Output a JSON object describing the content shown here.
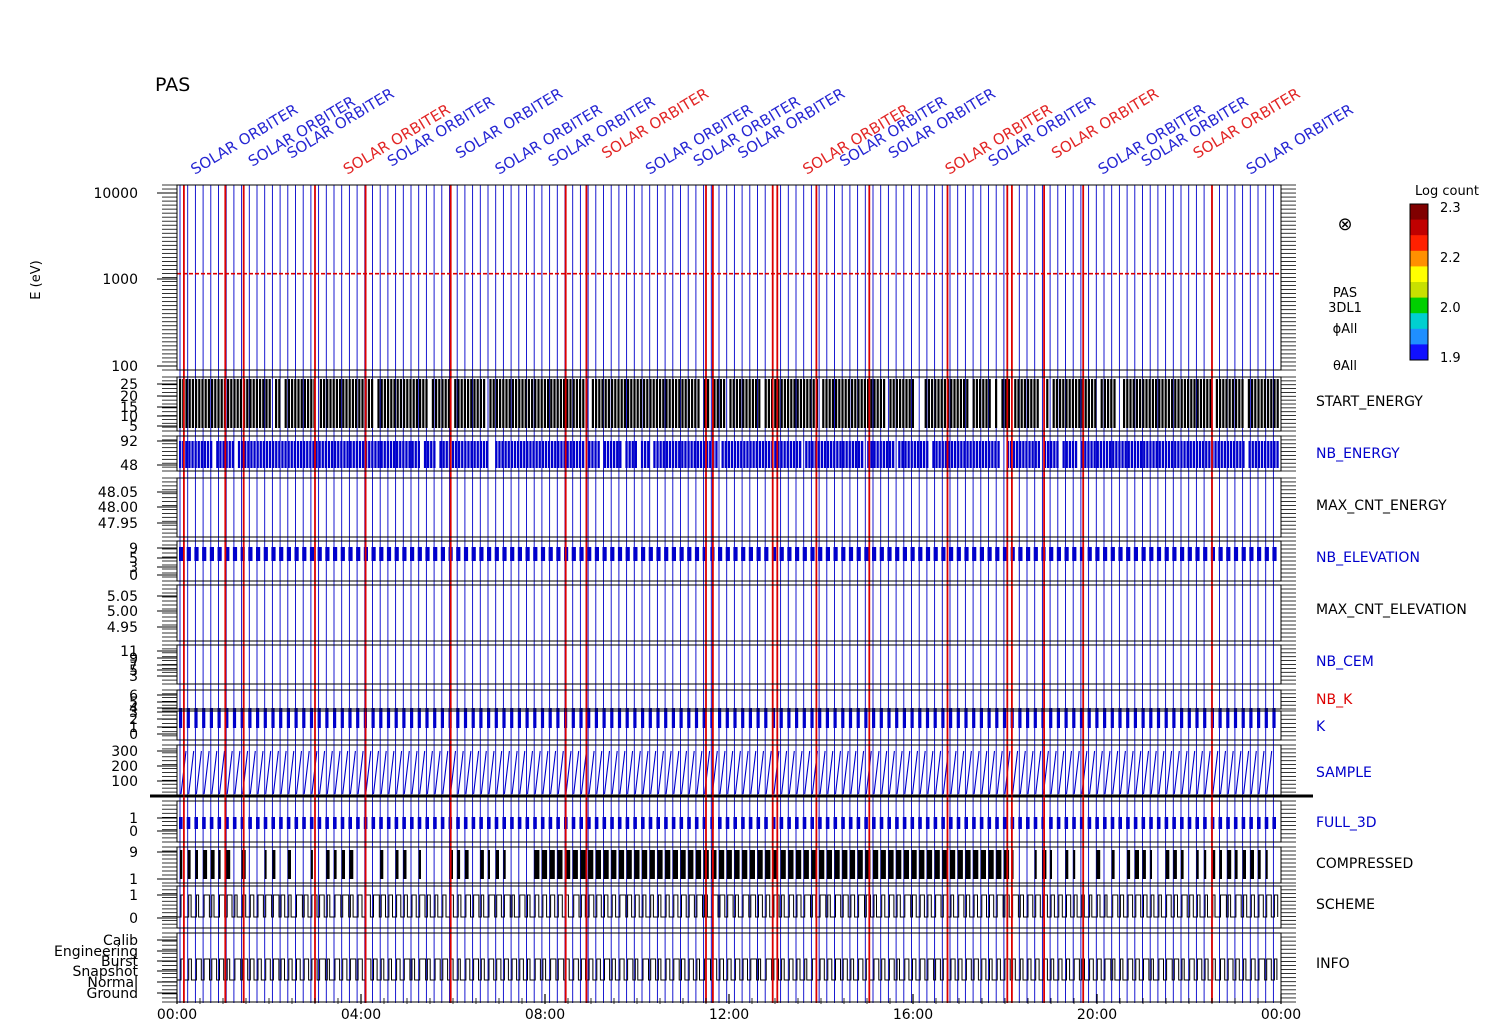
{
  "header": {
    "instrument": "PAS",
    "overlap_text": "SOLAR ORBITER"
  },
  "colorbar": {
    "title": "Log count",
    "ticks": [
      "2.3",
      "2.2",
      "2.0",
      "1.9"
    ],
    "colors": [
      "#1010ff",
      "#1f8fff",
      "#00d0d0",
      "#00d000",
      "#c8e000",
      "#ffff00",
      "#ff9000",
      "#ff2000",
      "#c00000",
      "#800000"
    ]
  },
  "spectrogram_label": {
    "instrument": "PAS",
    "product": "3DL1",
    "phi": "ϕAll",
    "theta": "θAll",
    "marker": "⊗"
  },
  "axes": {
    "ylabel": "E (eV)",
    "x_ticks": [
      "00:00",
      "04:00",
      "08:00",
      "12:00",
      "16:00",
      "20:00",
      "00:00"
    ]
  },
  "chart_data": {
    "type": "line",
    "x_range_hours": [
      0,
      24
    ],
    "x_tick_hours": [
      0,
      4,
      8,
      12,
      16,
      20,
      24
    ],
    "colors": {
      "blue": "#0000cc",
      "red": "#dd0000",
      "black": "#000000"
    },
    "red_marker_hours": [
      0.15,
      1.05,
      1.45,
      3.0,
      4.1,
      5.95,
      8.45,
      8.9,
      11.5,
      11.65,
      12.95,
      13.05,
      13.9,
      15.05,
      16.75,
      18.05,
      18.15,
      18.85,
      19.7,
      22.5
    ],
    "panels": [
      {
        "name": "E (eV) spectrogram",
        "label": "",
        "label_color": "black",
        "ticks": [
          "10000",
          "1000",
          "100"
        ],
        "energy_line_ev": 1100
      },
      {
        "name": "START_ENERGY",
        "label": "START_ENERGY",
        "label_color": "black",
        "ticks": [
          "25",
          "20",
          "15",
          "10",
          "5"
        ],
        "ylim": [
          0,
          27
        ]
      },
      {
        "name": "NB_ENERGY",
        "label": "NB_ENERGY",
        "label_color": "blue",
        "ticks": [
          "92",
          "48"
        ],
        "ylim": [
          40,
          96
        ]
      },
      {
        "name": "MAX_CNT_ENERGY",
        "label": "MAX_CNT_ENERGY",
        "label_color": "black",
        "ticks": [
          "48.05",
          "48.00",
          "47.95"
        ],
        "ylim": [
          47.92,
          48.08
        ]
      },
      {
        "name": "NB_ELEVATION",
        "label": "NB_ELEVATION",
        "label_color": "blue",
        "ticks": [
          "9",
          "5",
          "3",
          "0"
        ],
        "ylim": [
          0,
          10
        ]
      },
      {
        "name": "MAX_CNT_ELEVATION",
        "label": "MAX_CNT_ELEVATION",
        "label_color": "black",
        "ticks": [
          "5.05",
          "5.00",
          "4.95"
        ],
        "ylim": [
          4.92,
          5.08
        ]
      },
      {
        "name": "NB_CEM",
        "label": "NB_CEM",
        "label_color": "blue",
        "ticks": [
          "11",
          "9",
          "7",
          "5",
          "3"
        ],
        "ylim": [
          2,
          12
        ]
      },
      {
        "name": "NB_K",
        "label": "NB_K",
        "label_color": "red",
        "ticks": [
          "6",
          "5",
          "4"
        ],
        "ylim": [
          3,
          7
        ]
      },
      {
        "name": "K",
        "label": "K",
        "label_color": "blue",
        "ticks": [
          "3",
          "2",
          "1",
          "0"
        ],
        "ylim": [
          0,
          4
        ]
      },
      {
        "name": "SAMPLE",
        "label": "SAMPLE",
        "label_color": "blue",
        "ticks": [
          "300",
          "200",
          "100"
        ],
        "ylim": [
          0,
          330
        ]
      },
      {
        "name": "FULL_3D",
        "label": "FULL_3D",
        "label_color": "blue",
        "ticks": [
          "1",
          "0"
        ],
        "ylim": [
          -0.3,
          1.3
        ]
      },
      {
        "name": "COMPRESSED",
        "label": "COMPRESSED",
        "label_color": "black",
        "ticks": [
          "9",
          "1"
        ],
        "ylim": [
          0,
          10
        ]
      },
      {
        "name": "SCHEME",
        "label": "SCHEME",
        "label_color": "black",
        "ticks": [
          "1",
          "0"
        ],
        "ylim": [
          -0.4,
          1.4
        ]
      },
      {
        "name": "INFO",
        "label": "INFO",
        "label_color": "black",
        "ticks": [
          "Calib",
          "Engineering",
          "Burst",
          "Snapshot",
          "Normal",
          "Ground"
        ],
        "ylim": [
          -0.5,
          5.5
        ]
      }
    ]
  }
}
